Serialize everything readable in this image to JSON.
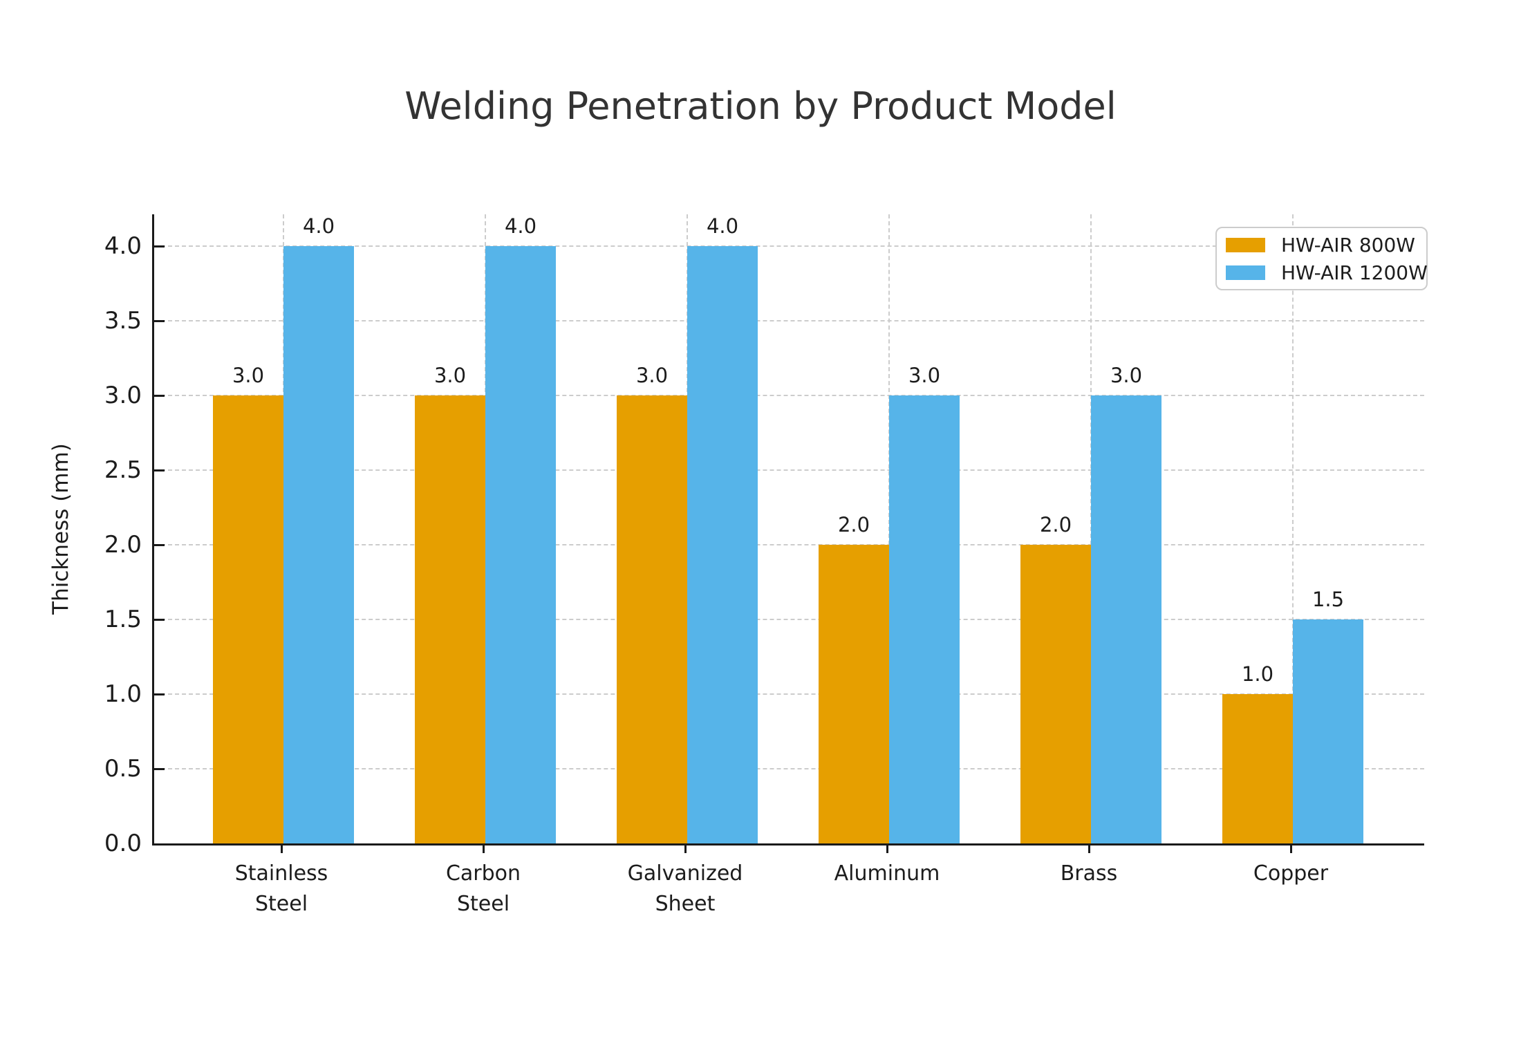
{
  "title": "Welding Penetration by Product Model",
  "chart_data": {
    "type": "bar",
    "categories": [
      "Stainless\nSteel",
      "Carbon\nSteel",
      "Galvanized\nSheet",
      "Aluminum",
      "Brass",
      "Copper"
    ],
    "series": [
      {
        "name": "HW-AIR 800W",
        "color": "#E69F00",
        "values": [
          3.0,
          3.0,
          3.0,
          2.0,
          2.0,
          1.0
        ]
      },
      {
        "name": "HW-AIR 1200W",
        "color": "#56B4E9",
        "values": [
          4.0,
          4.0,
          4.0,
          3.0,
          3.0,
          1.5
        ]
      }
    ],
    "ylabel": "Thickness (mm)",
    "yticks": [
      0.0,
      0.5,
      1.0,
      1.5,
      2.0,
      2.5,
      3.0,
      3.5,
      4.0
    ],
    "ylim": [
      0,
      4.21
    ],
    "grid": true,
    "grid_style": "dashed",
    "legend_position": "upper right",
    "value_label_format": "one-decimal",
    "style": {
      "grid_color": "#cccccc",
      "axis_color": "#1a1a1a",
      "title_color": "#333333",
      "text_color": "#1c1c1c",
      "legend_border_color": "#cccccc",
      "background": "#ffffff"
    }
  }
}
